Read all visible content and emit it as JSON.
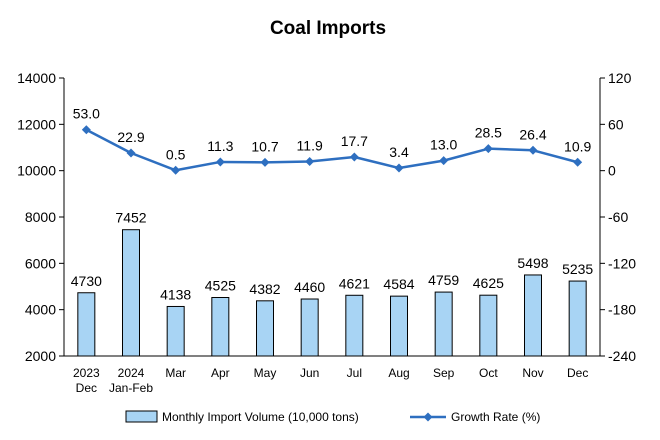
{
  "chart_data": {
    "type": "bar+line",
    "title": "Coal Imports",
    "categories": [
      [
        "2023",
        "Dec"
      ],
      [
        "2024",
        "Jan-Feb"
      ],
      [
        "Mar"
      ],
      [
        "Apr"
      ],
      [
        "May"
      ],
      [
        "Jun"
      ],
      [
        "Jul"
      ],
      [
        "Aug"
      ],
      [
        "Sep"
      ],
      [
        "Oct"
      ],
      [
        "Nov"
      ],
      [
        "Dec"
      ]
    ],
    "series": [
      {
        "name": "Monthly Import Volume (10,000 tons)",
        "type": "bar",
        "axis": "left",
        "values": [
          4730,
          7452,
          4138,
          4525,
          4382,
          4460,
          4621,
          4584,
          4759,
          4625,
          5498,
          5235
        ],
        "color": "#a8d4f4",
        "stroke": "#000000"
      },
      {
        "name": "Growth Rate (%)",
        "type": "line",
        "axis": "right",
        "values": [
          53.0,
          22.9,
          0.5,
          11.3,
          10.7,
          11.9,
          17.7,
          3.4,
          13.0,
          28.5,
          26.4,
          10.9
        ],
        "labels": [
          "53.0",
          "22.9",
          "0.5",
          "11.3",
          "10.7",
          "11.9",
          "17.7",
          "3.4",
          "13.0",
          "28.5",
          "26.4",
          "10.9"
        ],
        "color": "#2e6fc0"
      }
    ],
    "left_axis": {
      "min": 2000,
      "max": 14000,
      "ticks": [
        "2000",
        "4000",
        "6000",
        "8000",
        "10000",
        "12000",
        "14000"
      ]
    },
    "right_axis": {
      "min": -240,
      "max": 120,
      "ticks": [
        "-240",
        "-180",
        "-120",
        "-60",
        "0",
        "60",
        "120"
      ]
    },
    "grid": false,
    "legend_position": "bottom"
  }
}
